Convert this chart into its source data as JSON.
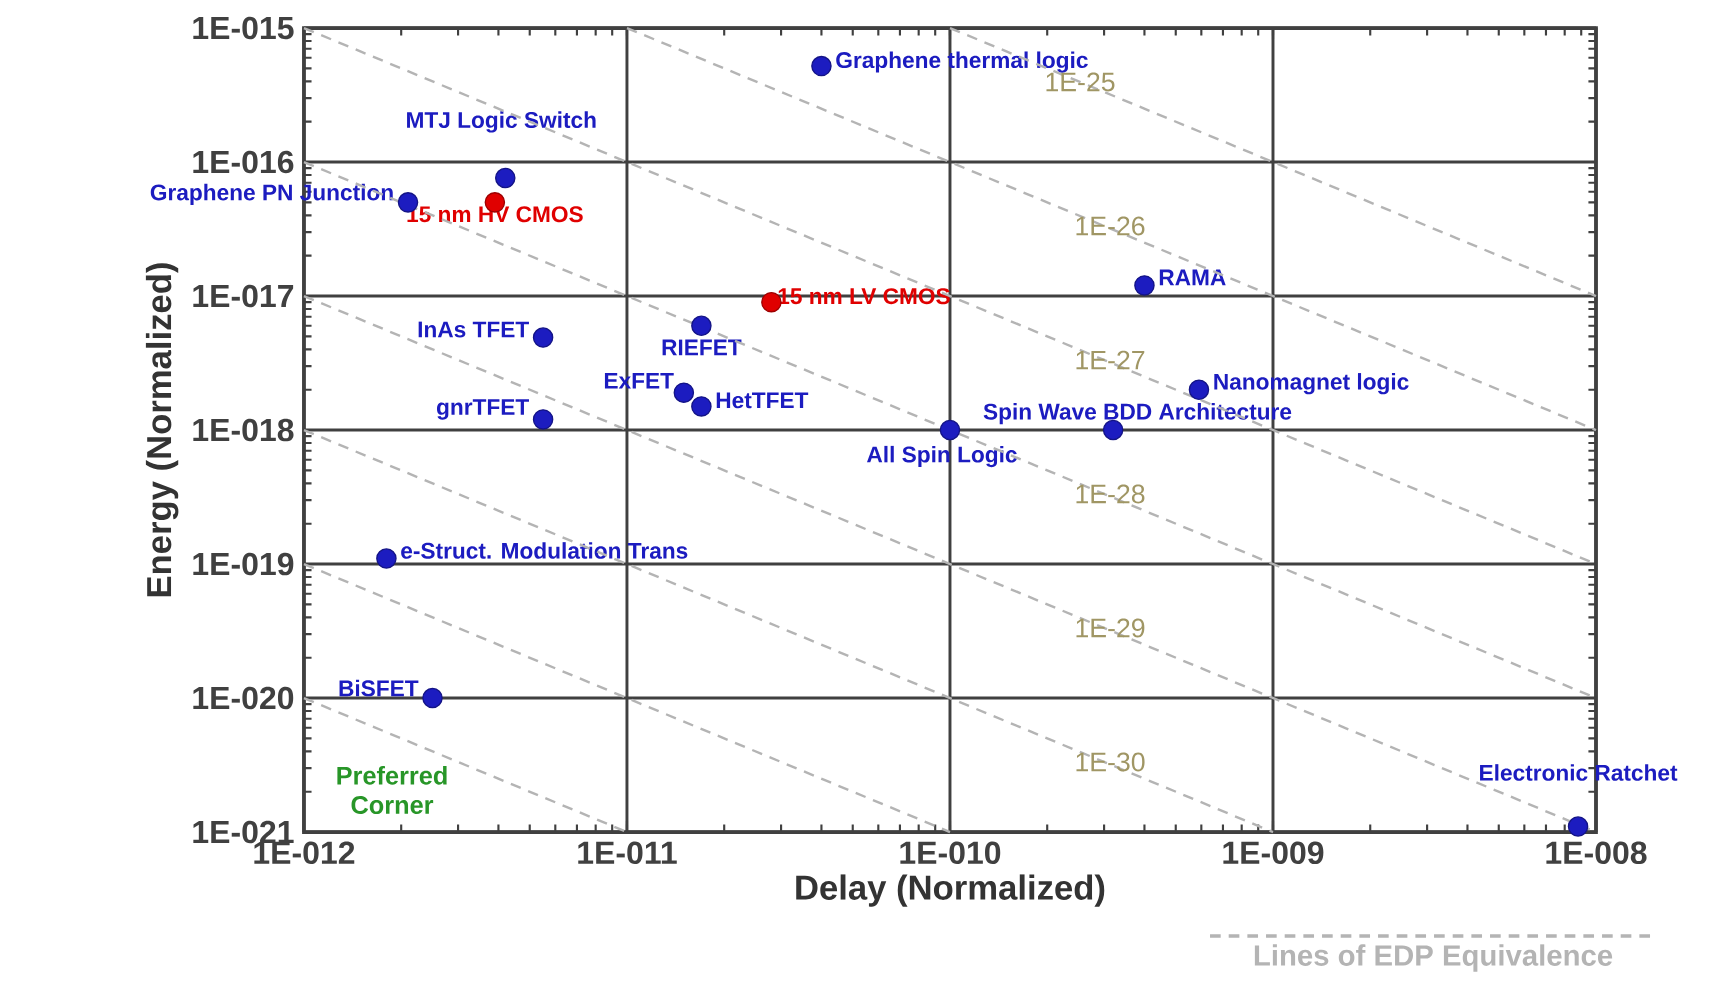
{
  "chart_data": {
    "type": "scatter",
    "xlabel": "Delay (Normalized)",
    "ylabel": "Energy (Normalized)",
    "log": "xy",
    "grid": true,
    "marker": "circle",
    "legend": "bottom right",
    "xlim": [
      1e-12,
      1e-08
    ],
    "ylim": [
      1e-21,
      1e-15
    ],
    "xticks": [
      {
        "value": 1e-12,
        "label": "1E-012"
      },
      {
        "value": 1e-11,
        "label": "1E-011"
      },
      {
        "value": 1e-10,
        "label": "1E-010"
      },
      {
        "value": 1e-09,
        "label": "1E-009"
      },
      {
        "value": 1e-08,
        "label": "1E-008"
      }
    ],
    "yticks": [
      {
        "value": 1e-21,
        "label": "1E-021"
      },
      {
        "value": 1e-20,
        "label": "1E-020"
      },
      {
        "value": 1e-19,
        "label": "1E-019"
      },
      {
        "value": 1e-18,
        "label": "1E-018"
      },
      {
        "value": 1e-17,
        "label": "1E-017"
      },
      {
        "value": 1e-16,
        "label": "1E-016"
      },
      {
        "value": 1e-15,
        "label": "1E-015"
      }
    ],
    "series": [
      {
        "name": "Graphene thermal logic",
        "color": "#1c1cc0",
        "x": [
          4e-11
        ],
        "values": [
          5.2e-16
        ]
      },
      {
        "name": "MTJ Logic Switch",
        "color": "#1c1cc0",
        "x": [
          4.2e-12
        ],
        "values": [
          7.6e-17
        ]
      },
      {
        "name": "Graphene PN Junction",
        "color": "#1c1cc0",
        "x": [
          2.1e-12
        ],
        "values": [
          5e-17
        ]
      },
      {
        "name": "15 nm HV CMOS",
        "color": "#e00000",
        "x": [
          3.9e-12
        ],
        "values": [
          5e-17
        ]
      },
      {
        "name": "15 nm LV CMOS",
        "color": "#e00000",
        "x": [
          2.8e-11
        ],
        "values": [
          9e-18
        ]
      },
      {
        "name": "RAMA",
        "color": "#1c1cc0",
        "x": [
          4e-10
        ],
        "values": [
          1.2e-17
        ]
      },
      {
        "name": "InAs TFET",
        "color": "#1c1cc0",
        "x": [
          5.5e-12
        ],
        "values": [
          4.9e-18
        ]
      },
      {
        "name": "RIEFET",
        "color": "#1c1cc0",
        "x": [
          1.7e-11
        ],
        "values": [
          6e-18
        ]
      },
      {
        "name": "ExFET",
        "color": "#1c1cc0",
        "x": [
          1.5e-11
        ],
        "values": [
          1.9e-18
        ]
      },
      {
        "name": "HetTFET",
        "color": "#1c1cc0",
        "x": [
          1.7e-11
        ],
        "values": [
          1.5e-18
        ]
      },
      {
        "name": "gnrTFET",
        "color": "#1c1cc0",
        "x": [
          5.5e-12
        ],
        "values": [
          1.2e-18
        ]
      },
      {
        "name": "Nanomagnet logic",
        "color": "#1c1cc0",
        "x": [
          5.9e-10
        ],
        "values": [
          2e-18
        ]
      },
      {
        "name": "All Spin Logic",
        "color": "#1c1cc0",
        "x": [
          1e-10
        ],
        "values": [
          1e-18
        ]
      },
      {
        "name": "Spin Wave BDD Architecture",
        "color": "#1c1cc0",
        "x": [
          3.2e-10
        ],
        "values": [
          1e-18
        ]
      },
      {
        "name": "e-Struct. Modulation  Trans",
        "color": "#1c1cc0",
        "x": [
          1.8e-12
        ],
        "values": [
          1.1e-19
        ]
      },
      {
        "name": "BiSFET",
        "color": "#1c1cc0",
        "x": [
          2.5e-12
        ],
        "values": [
          1e-20
        ]
      },
      {
        "name": "Electronic Ratchet",
        "color": "#1c1cc0",
        "x": [
          8.8e-09
        ],
        "values": [
          1.1e-21
        ]
      },
      {
        "name": "Lines of EDP Equivalence",
        "type": "line",
        "marker": "none",
        "line_style": "dashed",
        "color": "#b4b4b4",
        "x": [
          1e-10,
          1e-08
        ],
        "values": [
          1e-15,
          1e-17
        ]
      },
      {
        "type": "line",
        "line_style": "dashed",
        "color": "#b4b4b4",
        "x": [
          1e-11,
          1e-08
        ],
        "values": [
          1e-15,
          1e-18
        ],
        "marker": "none"
      },
      {
        "type": "line",
        "line_style": "dashed",
        "color": "#b4b4b4",
        "x": [
          1e-12,
          1e-08
        ],
        "values": [
          1e-15,
          1e-19
        ],
        "marker": "none"
      },
      {
        "type": "line",
        "line_style": "dashed",
        "color": "#b4b4b4",
        "x": [
          1e-12,
          1e-08
        ],
        "values": [
          1e-16,
          1e-20
        ],
        "marker": "none"
      },
      {
        "type": "line",
        "line_style": "dashed",
        "color": "#b4b4b4",
        "x": [
          1e-12,
          1e-08
        ],
        "values": [
          1e-17,
          1e-21
        ],
        "marker": "none"
      },
      {
        "type": "line",
        "line_style": "dashed",
        "color": "#b4b4b4",
        "x": [
          1e-12,
          1e-09
        ],
        "values": [
          1e-18,
          1e-21
        ],
        "marker": "none"
      },
      {
        "type": "line",
        "line_style": "dashed",
        "color": "#b4b4b4",
        "x": [
          1e-12,
          1e-10
        ],
        "values": [
          1e-19,
          1e-21
        ],
        "marker": "none"
      },
      {
        "type": "line",
        "line_style": "dashed",
        "color": "#b4b4b4",
        "x": [
          1e-12,
          1e-11
        ],
        "values": [
          1e-20,
          1e-21
        ],
        "marker": "none"
      }
    ],
    "annotations": [
      "Preferred Corner",
      "1E-25",
      "1E-26",
      "1E-27",
      "1E-28",
      "1E-29",
      "1E-30"
    ]
  }
}
